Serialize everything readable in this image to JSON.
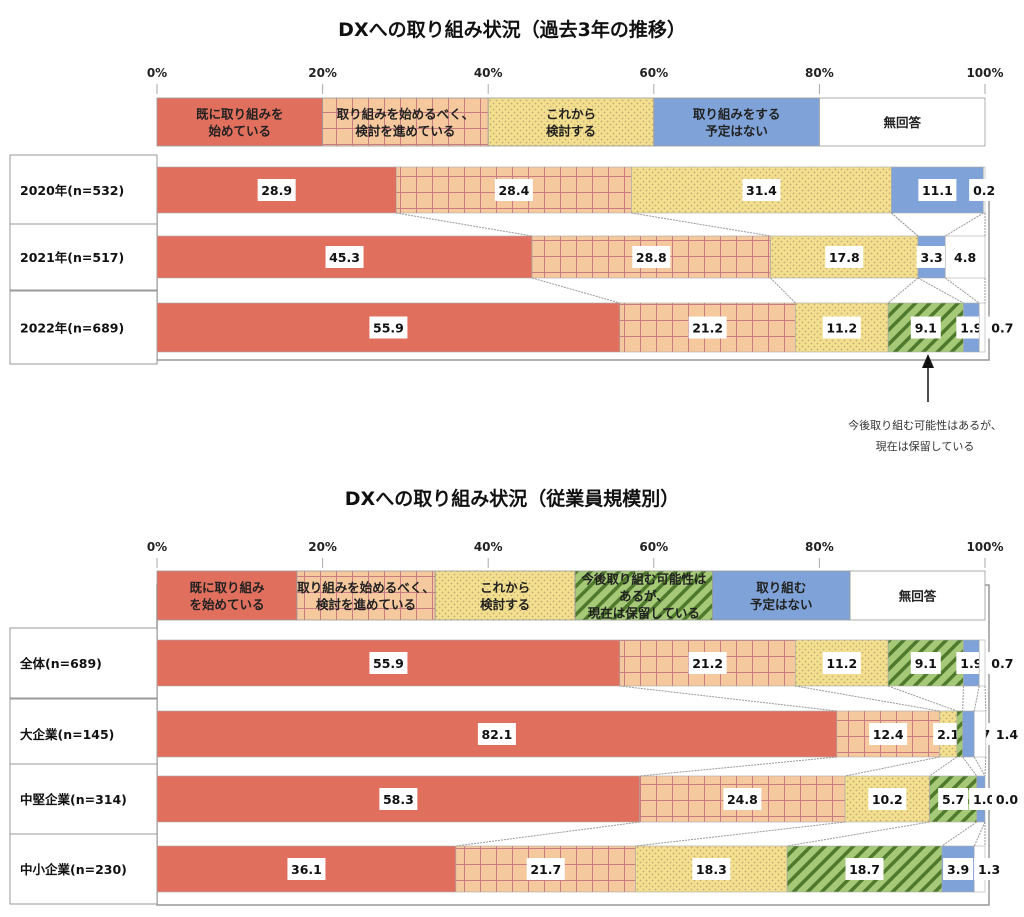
{
  "chart_data": [
    {
      "type": "bar",
      "orientation": "horizontal-stacked-100",
      "title": "DXへの取り組み状況（過去3年の推移）",
      "xlim": [
        0,
        100
      ],
      "ticks": [
        "0%",
        "20%",
        "40%",
        "60%",
        "80%",
        "100%"
      ],
      "categories": [
        "2020年(n=532)",
        "2021年(n=517)",
        "2022年(n=689)"
      ],
      "legend": [
        {
          "name": "既に取り組みを|始めている",
          "color": "#e06f5e",
          "pattern": "solid"
        },
        {
          "name": "取り組みを始めるべく、|検討を進めている",
          "color": "#f5c89e",
          "pattern": "grid"
        },
        {
          "name": "これから|検討する",
          "color": "#f2e08e",
          "pattern": "dots"
        },
        {
          "name": "取り組みをする|予定はない",
          "color": "#7fa3d8",
          "pattern": "solid"
        },
        {
          "name": "無回答",
          "color": "#ffffff",
          "pattern": "solid"
        }
      ],
      "series": [
        {
          "name": "既に取り組みを始めている",
          "values": [
            28.9,
            45.3,
            55.9
          ]
        },
        {
          "name": "取り組みを始めるべく、検討を進めている",
          "values": [
            28.4,
            28.8,
            21.2
          ]
        },
        {
          "name": "これから検討する",
          "values": [
            31.4,
            17.8,
            11.2
          ]
        },
        {
          "name": "今後取り組む可能性はあるが、現在は保留している",
          "values": [
            0,
            0,
            9.1
          ]
        },
        {
          "name": "取り組みをする予定はない",
          "values": [
            11.1,
            3.3,
            1.9
          ]
        },
        {
          "name": "無回答",
          "values": [
            0.2,
            4.8,
            0.7
          ]
        }
      ],
      "annotation": "今後取り組む可能性はあるが、|現在は保留している"
    },
    {
      "type": "bar",
      "orientation": "horizontal-stacked-100",
      "title": "DXへの取り組み状況（従業員規模別）",
      "xlim": [
        0,
        100
      ],
      "ticks": [
        "0%",
        "20%",
        "40%",
        "60%",
        "80%",
        "100%"
      ],
      "categories": [
        "全体(n=689)",
        "大企業(n=145)",
        "中堅企業(n=314)",
        "中小企業(n=230)"
      ],
      "legend": [
        {
          "name": "既に取り組み|を始めている",
          "color": "#e06f5e",
          "pattern": "solid"
        },
        {
          "name": "取り組みを始めるべく、|検討を進めている",
          "color": "#f5c89e",
          "pattern": "grid"
        },
        {
          "name": "これから|検討する",
          "color": "#f2e08e",
          "pattern": "dots"
        },
        {
          "name": "今後取り組む可能性は|あるが、|現在は保留している",
          "color": "#9cc26c",
          "pattern": "stripes"
        },
        {
          "name": "取り組む|予定はない",
          "color": "#7fa3d8",
          "pattern": "solid"
        },
        {
          "name": "無回答",
          "color": "#ffffff",
          "pattern": "solid"
        }
      ],
      "series": [
        {
          "name": "既に取り組みを始めている",
          "values": [
            55.9,
            82.1,
            58.3,
            36.1
          ]
        },
        {
          "name": "取り組みを始めるべく、検討を進めている",
          "values": [
            21.2,
            12.4,
            24.8,
            21.7
          ]
        },
        {
          "name": "これから検討する",
          "values": [
            11.2,
            2.1,
            10.2,
            18.3
          ]
        },
        {
          "name": "今後取り組む可能性はあるが、現在は保留している",
          "values": [
            9.1,
            0.7,
            5.7,
            18.7
          ]
        },
        {
          "name": "取り組む予定はない",
          "values": [
            1.9,
            1.4,
            1.0,
            3.9
          ]
        },
        {
          "name": "無回答",
          "values": [
            0.7,
            1.4,
            0.0,
            1.3
          ]
        }
      ]
    }
  ]
}
